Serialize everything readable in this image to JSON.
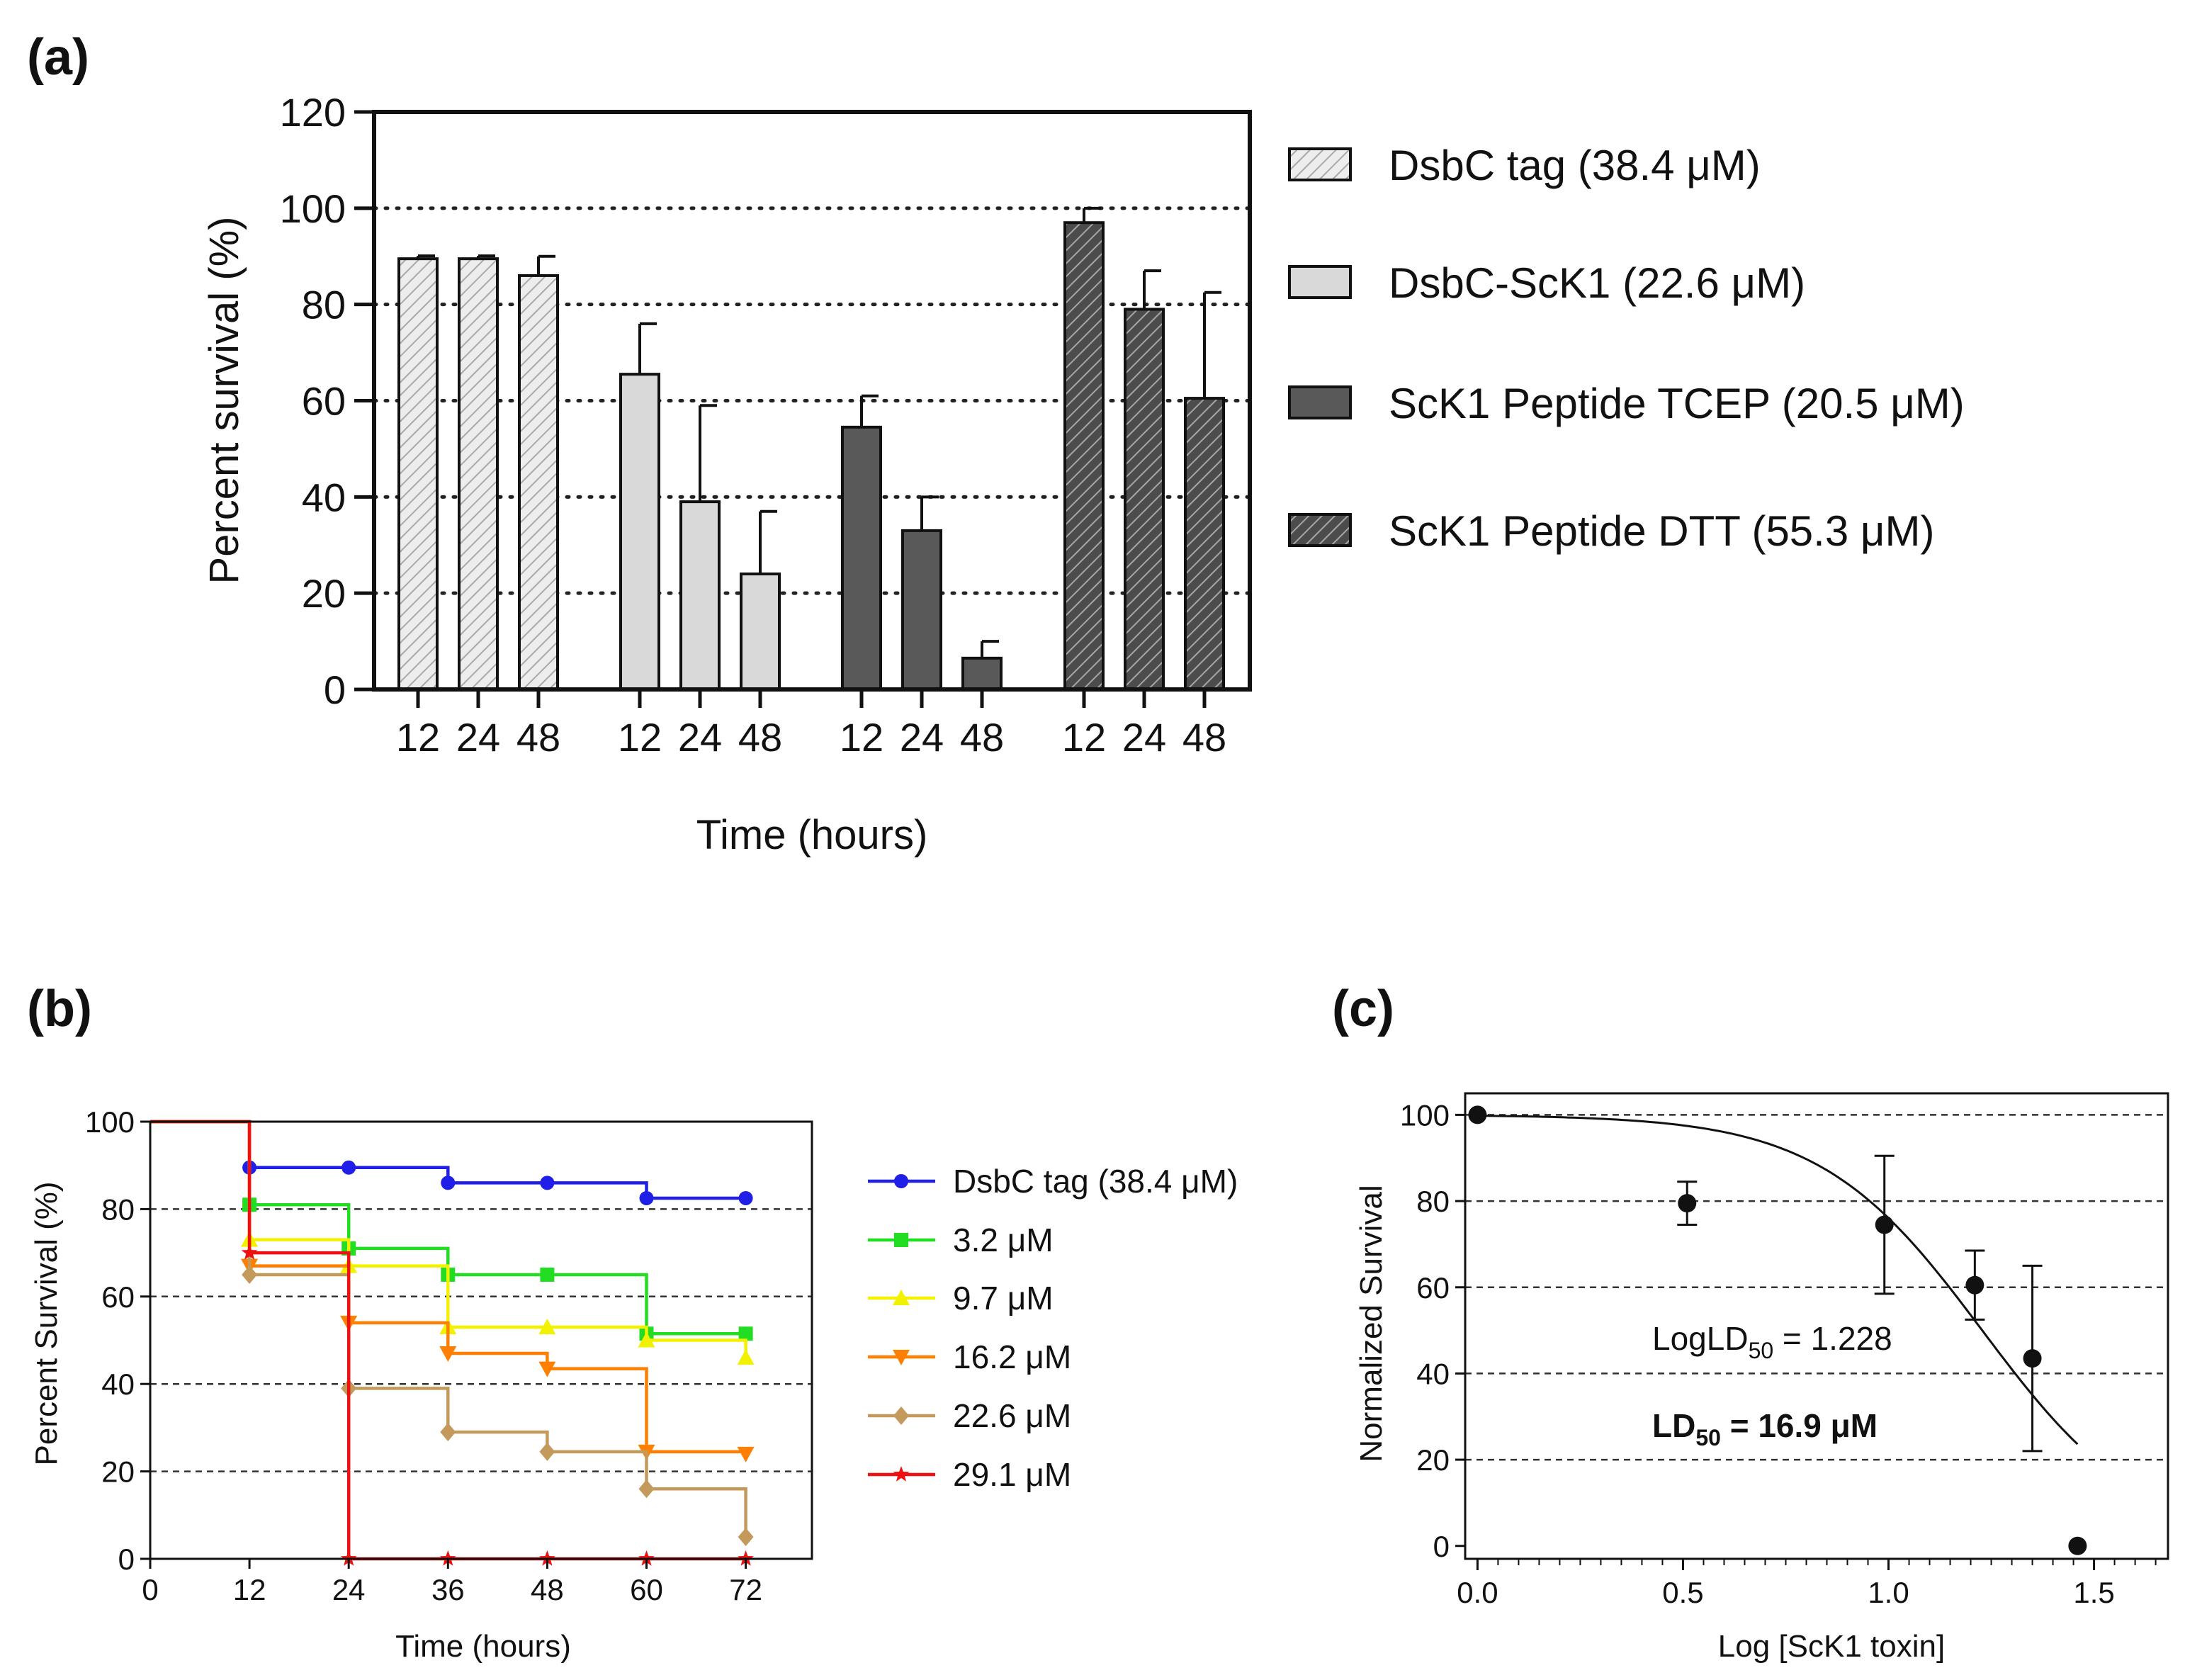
{
  "chart_data": [
    {
      "panel": "(a)",
      "type": "bar",
      "title": "",
      "xlabel": "Time (hours)",
      "ylabel": "Percent survival (%)",
      "ylim": [
        0,
        120
      ],
      "yticks": [
        "0",
        "20",
        "40",
        "60",
        "80",
        "100",
        "120"
      ],
      "grid": "dotted horizontal at 20, 40, 60, 80, 100",
      "legend_position": "right",
      "categories": [
        "12",
        "24",
        "48"
      ],
      "series": [
        {
          "name": "DsbC tag (38.4 μM)",
          "style": "hatched-light",
          "color": "#e4e4e4",
          "values": [
            89.5,
            89.5,
            86
          ],
          "errors": [
            0.6,
            0.6,
            4
          ]
        },
        {
          "name": "DsbC-ScK1 (22.6 μM)",
          "style": "solid-light",
          "color": "#d9d9d9",
          "values": [
            65.5,
            39,
            24
          ],
          "errors": [
            10.5,
            20,
            13
          ]
        },
        {
          "name": "ScK1 Peptide TCEP (20.5 μM)",
          "style": "solid-dark",
          "color": "#595959",
          "values": [
            54.5,
            33,
            6.5
          ],
          "errors": [
            6.5,
            7,
            3.5
          ]
        },
        {
          "name": "ScK1 Peptide DTT (55.3 μM)",
          "style": "hatched-dark",
          "color": "#6e6e6e",
          "values": [
            97,
            79,
            60.5
          ],
          "errors": [
            3,
            8,
            22
          ]
        }
      ]
    },
    {
      "panel": "(b)",
      "type": "line",
      "subtype": "step survival curves",
      "title": "",
      "xlabel": "Time (hours)",
      "ylabel": "Percent Survival (%)",
      "xlim": [
        0,
        80
      ],
      "ylim": [
        0,
        100
      ],
      "xticks": [
        "0",
        "12",
        "24",
        "36",
        "48",
        "60",
        "72"
      ],
      "yticks": [
        "0",
        "20",
        "40",
        "60",
        "80",
        "100"
      ],
      "grid": "dashed horizontal",
      "legend_position": "right",
      "x": [
        0,
        12,
        24,
        36,
        48,
        60,
        72
      ],
      "series": [
        {
          "name": "DsbC tag (38.4 μM)",
          "color": "#1f1fe8",
          "marker": "circle",
          "values": [
            100,
            89.5,
            89.5,
            86,
            86,
            82.5,
            82.5
          ]
        },
        {
          "name": "3.2 μM",
          "color": "#22dd22",
          "marker": "square",
          "values": [
            100,
            81,
            71,
            65,
            65,
            51.5,
            51.5
          ]
        },
        {
          "name": "9.7 μM",
          "color": "#f2f200",
          "marker": "triangle-up",
          "values": [
            100,
            73,
            67,
            53,
            53,
            50,
            46
          ]
        },
        {
          "name": "16.2 μM",
          "color": "#ff7f00",
          "marker": "triangle-down",
          "values": [
            100,
            67,
            54,
            47,
            43.5,
            24.5,
            24
          ]
        },
        {
          "name": "22.6 μM",
          "color": "#c39a5b",
          "marker": "diamond",
          "values": [
            100,
            65,
            39,
            29,
            24.5,
            16,
            5
          ]
        },
        {
          "name": "29.1 μM",
          "color": "#ee1111",
          "marker": "star",
          "values": [
            100,
            70,
            0,
            0,
            0,
            0,
            0
          ]
        }
      ]
    },
    {
      "panel": "(c)",
      "type": "scatter",
      "subtype": "dose-response with fitted curve",
      "title": "",
      "xlabel": "Log [ScK1 toxin]",
      "ylabel": "Normalized Survival",
      "xlim": [
        -0.03,
        1.68
      ],
      "ylim": [
        -3,
        105
      ],
      "xticks": [
        "0.0",
        "0.5",
        "1.0",
        "1.5"
      ],
      "yticks": [
        "0",
        "20",
        "40",
        "60",
        "80",
        "100"
      ],
      "grid": "dashed horizontal",
      "points": [
        {
          "x": 0.0,
          "y": 100,
          "err": 0
        },
        {
          "x": 0.51,
          "y": 79.5,
          "err": 5
        },
        {
          "x": 0.99,
          "y": 74.5,
          "err": 16
        },
        {
          "x": 1.21,
          "y": 60.5,
          "err": 8
        },
        {
          "x": 1.35,
          "y": 43.5,
          "err": 21.5
        },
        {
          "x": 1.46,
          "y": 0,
          "err": 0
        }
      ],
      "fit": {
        "model": "four-parameter logistic",
        "top": 100,
        "bottom": 0,
        "logLD50": 1.228,
        "hill": 2.2,
        "x_range": [
          0,
          1.46
        ]
      },
      "annotations": {
        "loglabel": "LogLD",
        "logsub": "50",
        "logvalue": " = 1.228",
        "ldlabel": "LD",
        "ldsub": "50",
        "ldvalue": " = 16.9 μM"
      }
    }
  ]
}
